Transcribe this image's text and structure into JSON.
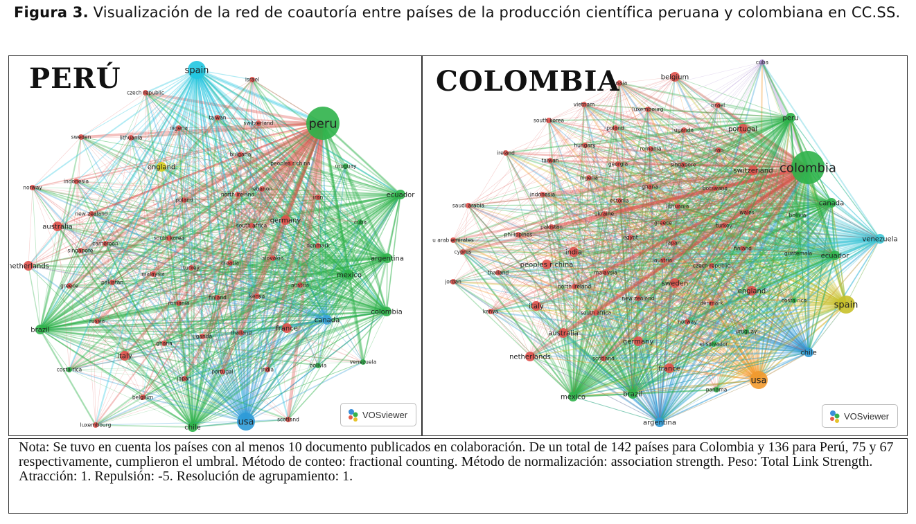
{
  "caption": {
    "label": "Figura 3.",
    "text": "Visualización de la red de coautoría entre países de la producción científica peruana y colombiana en CC.SS."
  },
  "panels": [
    {
      "title": "PERÚ",
      "badge": "VOSviewer",
      "nodes": [
        {
          "label": "peru",
          "color": "#2fb34a",
          "size": "large"
        },
        {
          "label": "spain",
          "color": "#22c7e0",
          "size": "medium"
        },
        {
          "label": "usa",
          "color": "#2f9bd8",
          "size": "medium"
        },
        {
          "label": "chile",
          "color": "#2fb34a",
          "size": "small"
        },
        {
          "label": "brazil",
          "color": "#2fb34a",
          "size": "small"
        },
        {
          "label": "colombia",
          "color": "#2fb34a",
          "size": "small"
        },
        {
          "label": "mexico",
          "color": "#2fb34a",
          "size": "small"
        },
        {
          "label": "ecuador",
          "color": "#2fb34a",
          "size": "small"
        },
        {
          "label": "argentina",
          "color": "#2fb34a",
          "size": "small"
        },
        {
          "label": "england",
          "color": "#d6cc1e",
          "size": "small"
        },
        {
          "label": "canada",
          "color": "#3aa4dc",
          "size": "small"
        },
        {
          "label": "israel",
          "color": "#e0504a",
          "size": "tiny"
        },
        {
          "label": "czech republic",
          "color": "#e0504a",
          "size": "tiny"
        },
        {
          "label": "taiwan",
          "color": "#e0504a",
          "size": "tiny"
        },
        {
          "label": "switzerland",
          "color": "#e0504a",
          "size": "tiny"
        },
        {
          "label": "nigeria",
          "color": "#e0504a",
          "size": "tiny"
        },
        {
          "label": "sweden",
          "color": "#e0504a",
          "size": "tiny"
        },
        {
          "label": "lithuania",
          "color": "#e0504a",
          "size": "tiny"
        },
        {
          "label": "bulgaria",
          "color": "#e0504a",
          "size": "tiny"
        },
        {
          "label": "peoples r china",
          "color": "#e0504a",
          "size": "tiny"
        },
        {
          "label": "uruguay",
          "color": "#2fb34a",
          "size": "tiny"
        },
        {
          "label": "norway",
          "color": "#e0504a",
          "size": "tiny"
        },
        {
          "label": "indonesia",
          "color": "#e0504a",
          "size": "tiny"
        },
        {
          "label": "iran",
          "color": "#e0504a",
          "size": "tiny"
        },
        {
          "label": "north ireland",
          "color": "#e0504a",
          "size": "tiny"
        },
        {
          "label": "lebanon",
          "color": "#e0504a",
          "size": "tiny"
        },
        {
          "label": "new zealand",
          "color": "#e0504a",
          "size": "tiny"
        },
        {
          "label": "poland",
          "color": "#e0504a",
          "size": "tiny"
        },
        {
          "label": "australia",
          "color": "#e0504a",
          "size": "small"
        },
        {
          "label": "germany",
          "color": "#e0504a",
          "size": "small"
        },
        {
          "label": "south africa",
          "color": "#e0504a",
          "size": "tiny"
        },
        {
          "label": "cuba",
          "color": "#2fb34a",
          "size": "tiny"
        },
        {
          "label": "cameroon",
          "color": "#e0504a",
          "size": "tiny"
        },
        {
          "label": "south korea",
          "color": "#e0504a",
          "size": "tiny"
        },
        {
          "label": "singapore",
          "color": "#e0504a",
          "size": "tiny"
        },
        {
          "label": "netherlands",
          "color": "#e0504a",
          "size": "small"
        },
        {
          "label": "denmark",
          "color": "#e0504a",
          "size": "tiny"
        },
        {
          "label": "slovakia",
          "color": "#e0504a",
          "size": "tiny"
        },
        {
          "label": "turkey",
          "color": "#e0504a",
          "size": "tiny"
        },
        {
          "label": "malaysia",
          "color": "#e0504a",
          "size": "tiny"
        },
        {
          "label": "croatia",
          "color": "#e0504a",
          "size": "tiny"
        },
        {
          "label": "pakistan",
          "color": "#e0504a",
          "size": "tiny"
        },
        {
          "label": "austria",
          "color": "#e0504a",
          "size": "tiny"
        },
        {
          "label": "greece",
          "color": "#e0504a",
          "size": "tiny"
        },
        {
          "label": "finland",
          "color": "#e0504a",
          "size": "tiny"
        },
        {
          "label": "kenya",
          "color": "#e0504a",
          "size": "tiny"
        },
        {
          "label": "romania",
          "color": "#e0504a",
          "size": "tiny"
        },
        {
          "label": "scotland",
          "color": "#e0504a",
          "size": "tiny"
        },
        {
          "label": "russia",
          "color": "#e0504a",
          "size": "tiny"
        },
        {
          "label": "thailand",
          "color": "#e0504a",
          "size": "tiny"
        },
        {
          "label": "uganda",
          "color": "#e0504a",
          "size": "tiny"
        },
        {
          "label": "france",
          "color": "#e0504a",
          "size": "small"
        },
        {
          "label": "ghana",
          "color": "#e0504a",
          "size": "tiny"
        },
        {
          "label": "italy",
          "color": "#e0504a",
          "size": "small"
        },
        {
          "label": "costa rica",
          "color": "#2fb34a",
          "size": "tiny"
        },
        {
          "label": "india",
          "color": "#e0504a",
          "size": "tiny"
        },
        {
          "label": "bolivia",
          "color": "#2fb34a",
          "size": "tiny"
        },
        {
          "label": "venezuela",
          "color": "#2fb34a",
          "size": "tiny"
        },
        {
          "label": "japan",
          "color": "#e0504a",
          "size": "tiny"
        },
        {
          "label": "portugal",
          "color": "#e0504a",
          "size": "tiny"
        },
        {
          "label": "belgium",
          "color": "#e0504a",
          "size": "tiny"
        },
        {
          "label": "luxembourg",
          "color": "#e0504a",
          "size": "tiny"
        }
      ]
    },
    {
      "title": "COLOMBIA",
      "badge": "VOSviewer",
      "nodes": [
        {
          "label": "colombia",
          "color": "#2fb34a",
          "size": "large"
        },
        {
          "label": "spain",
          "color": "#c9c12a",
          "size": "medium"
        },
        {
          "label": "usa",
          "color": "#f39a2e",
          "size": "medium"
        },
        {
          "label": "cuba",
          "color": "#a98ad0",
          "size": "tiny"
        },
        {
          "label": "belgium",
          "color": "#e0504a",
          "size": "small"
        },
        {
          "label": "russia",
          "color": "#e0504a",
          "size": "tiny"
        },
        {
          "label": "vietnam",
          "color": "#e0504a",
          "size": "tiny"
        },
        {
          "label": "luxembourg",
          "color": "#e0504a",
          "size": "tiny"
        },
        {
          "label": "israel",
          "color": "#e0504a",
          "size": "tiny"
        },
        {
          "label": "peru",
          "color": "#2fb34a",
          "size": "small"
        },
        {
          "label": "south korea",
          "color": "#e0504a",
          "size": "tiny"
        },
        {
          "label": "poland",
          "color": "#e0504a",
          "size": "tiny"
        },
        {
          "label": "uganda",
          "color": "#e0504a",
          "size": "tiny"
        },
        {
          "label": "portugal",
          "color": "#e0504a",
          "size": "small"
        },
        {
          "label": "hungary",
          "color": "#e0504a",
          "size": "tiny"
        },
        {
          "label": "romania",
          "color": "#e0504a",
          "size": "tiny"
        },
        {
          "label": "ireland",
          "color": "#e0504a",
          "size": "tiny"
        },
        {
          "label": "iran",
          "color": "#e0504a",
          "size": "tiny"
        },
        {
          "label": "taiwan",
          "color": "#e0504a",
          "size": "tiny"
        },
        {
          "label": "georgia",
          "color": "#e0504a",
          "size": "tiny"
        },
        {
          "label": "singapore",
          "color": "#e0504a",
          "size": "tiny"
        },
        {
          "label": "switzerland",
          "color": "#e0504a",
          "size": "small"
        },
        {
          "label": "nigeria",
          "color": "#e0504a",
          "size": "tiny"
        },
        {
          "label": "ghana",
          "color": "#e0504a",
          "size": "tiny"
        },
        {
          "label": "botswana",
          "color": "#e0504a",
          "size": "tiny"
        },
        {
          "label": "canada",
          "color": "#2fb34a",
          "size": "small"
        },
        {
          "label": "saudi arabia",
          "color": "#e0504a",
          "size": "tiny"
        },
        {
          "label": "indonesia",
          "color": "#e0504a",
          "size": "tiny"
        },
        {
          "label": "estonia",
          "color": "#e0504a",
          "size": "tiny"
        },
        {
          "label": "lithuania",
          "color": "#e0504a",
          "size": "tiny"
        },
        {
          "label": "wales",
          "color": "#e0504a",
          "size": "tiny"
        },
        {
          "label": "bolivia",
          "color": "#2fb34a",
          "size": "tiny"
        },
        {
          "label": "pakistan",
          "color": "#e0504a",
          "size": "tiny"
        },
        {
          "label": "ukraine",
          "color": "#e0504a",
          "size": "tiny"
        },
        {
          "label": "greece",
          "color": "#e0504a",
          "size": "tiny"
        },
        {
          "label": "turkey",
          "color": "#e0504a",
          "size": "tiny"
        },
        {
          "label": "u arab emirates",
          "color": "#e0504a",
          "size": "tiny"
        },
        {
          "label": "philippines",
          "color": "#e0504a",
          "size": "tiny"
        },
        {
          "label": "egypt",
          "color": "#e0504a",
          "size": "tiny"
        },
        {
          "label": "japan",
          "color": "#e0504a",
          "size": "tiny"
        },
        {
          "label": "venezuela",
          "color": "#3ec6d6",
          "size": "small"
        },
        {
          "label": "cyprus",
          "color": "#e0504a",
          "size": "tiny"
        },
        {
          "label": "india",
          "color": "#e0504a",
          "size": "small"
        },
        {
          "label": "finland",
          "color": "#e0504a",
          "size": "tiny"
        },
        {
          "label": "guatemala",
          "color": "#2fb34a",
          "size": "tiny"
        },
        {
          "label": "peoples r china",
          "color": "#e0504a",
          "size": "small"
        },
        {
          "label": "austria",
          "color": "#e0504a",
          "size": "tiny"
        },
        {
          "label": "czech republic",
          "color": "#e0504a",
          "size": "tiny"
        },
        {
          "label": "ecuador",
          "color": "#2fb34a",
          "size": "small"
        },
        {
          "label": "thailand",
          "color": "#e0504a",
          "size": "tiny"
        },
        {
          "label": "malaysia",
          "color": "#e0504a",
          "size": "tiny"
        },
        {
          "label": "jordan",
          "color": "#e0504a",
          "size": "tiny"
        },
        {
          "label": "north ireland",
          "color": "#e0504a",
          "size": "tiny"
        },
        {
          "label": "sweden",
          "color": "#e0504a",
          "size": "small"
        },
        {
          "label": "england",
          "color": "#e0504a",
          "size": "small"
        },
        {
          "label": "italy",
          "color": "#e0504a",
          "size": "small"
        },
        {
          "label": "new zealand",
          "color": "#e0504a",
          "size": "tiny"
        },
        {
          "label": "denmark",
          "color": "#e0504a",
          "size": "tiny"
        },
        {
          "label": "costa rica",
          "color": "#2fb34a",
          "size": "tiny"
        },
        {
          "label": "kenya",
          "color": "#e0504a",
          "size": "tiny"
        },
        {
          "label": "south africa",
          "color": "#e0504a",
          "size": "tiny"
        },
        {
          "label": "norway",
          "color": "#e0504a",
          "size": "tiny"
        },
        {
          "label": "uruguay",
          "color": "#2fb34a",
          "size": "tiny"
        },
        {
          "label": "australia",
          "color": "#e0504a",
          "size": "small"
        },
        {
          "label": "germany",
          "color": "#e0504a",
          "size": "small"
        },
        {
          "label": "el salvador",
          "color": "#2fb34a",
          "size": "tiny"
        },
        {
          "label": "chile",
          "color": "#2f9bd8",
          "size": "small"
        },
        {
          "label": "netherlands",
          "color": "#e0504a",
          "size": "small"
        },
        {
          "label": "scotland",
          "color": "#e0504a",
          "size": "tiny"
        },
        {
          "label": "france",
          "color": "#e0504a",
          "size": "small"
        },
        {
          "label": "panama",
          "color": "#2fb34a",
          "size": "tiny"
        },
        {
          "label": "mexico",
          "color": "#2fb34a",
          "size": "small"
        },
        {
          "label": "brazil",
          "color": "#2fb34a",
          "size": "small"
        },
        {
          "label": "argentina",
          "color": "#2f9bd8",
          "size": "small"
        }
      ]
    }
  ],
  "note": "Nota: Se tuvo en cuenta los países con al menos 10 documento publicados en colaboración.  De un total de 142 países para Colombia y 136 para Perú, 75 y 67 respectivamente, cumplieron el umbral. Método de conteo: fractional counting. Método de normalización: association strength. Peso: Total Link Strength. Atracción: 1. Repulsión: -5. Resolución de agrupamiento: 1."
}
